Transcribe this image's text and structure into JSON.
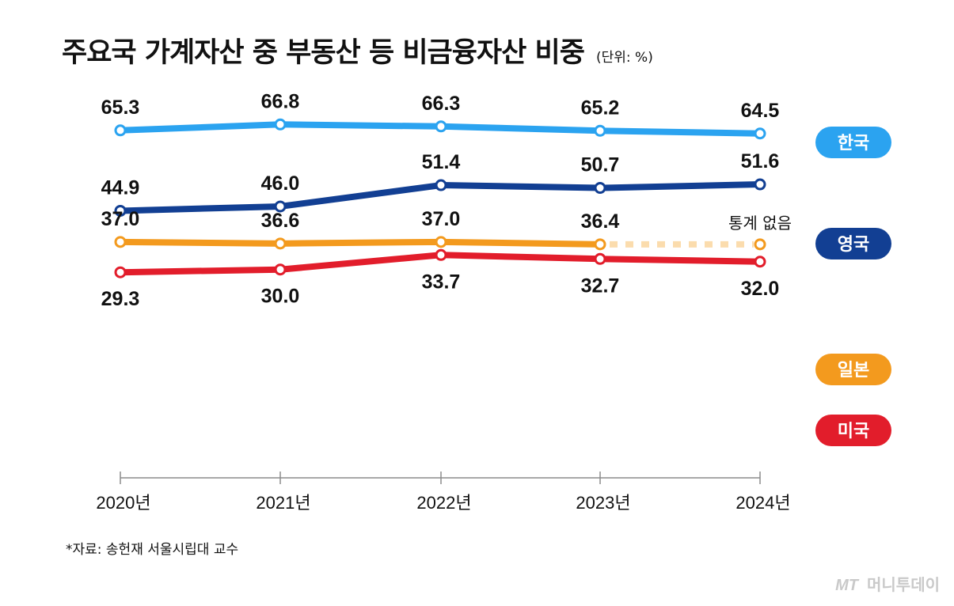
{
  "title": "주요국 가계자산 중 부동산 등 비금융자산 비중",
  "unit": "(단위: %)",
  "source": "*자료: 송헌재 서울시립대 교수",
  "logo": {
    "mark": "MT",
    "name": "머니투데이"
  },
  "chart_data": {
    "type": "line",
    "title": "주요국 가계자산 중 부동산 등 비금융자산 비중",
    "categories": [
      "2020년",
      "2021년",
      "2022년",
      "2023년",
      "2024년"
    ],
    "series": [
      {
        "name": "한국",
        "values": [
          65.3,
          66.8,
          66.3,
          65.2,
          64.5
        ],
        "labels": [
          "65.3",
          "66.8",
          "66.3",
          "65.2",
          "64.5"
        ],
        "color": "#2ba3f0"
      },
      {
        "name": "영국",
        "values": [
          44.9,
          46.0,
          51.4,
          50.7,
          51.6
        ],
        "labels": [
          "44.9",
          "46.0",
          "51.4",
          "50.7",
          "51.6"
        ],
        "color": "#123f93"
      },
      {
        "name": "일본",
        "values": [
          37.0,
          36.6,
          37.0,
          36.4,
          null
        ],
        "labels": [
          "37.0",
          "36.6",
          "37.0",
          "36.4",
          null
        ],
        "color": "#f39a1e",
        "note": "통계 없음"
      },
      {
        "name": "미국",
        "values": [
          29.3,
          30.0,
          33.7,
          32.7,
          32.0
        ],
        "labels": [
          "29.3",
          "30.0",
          "33.7",
          "32.7",
          "32.0"
        ],
        "color": "#e21d2b"
      }
    ],
    "grid": false,
    "legend": "right"
  }
}
